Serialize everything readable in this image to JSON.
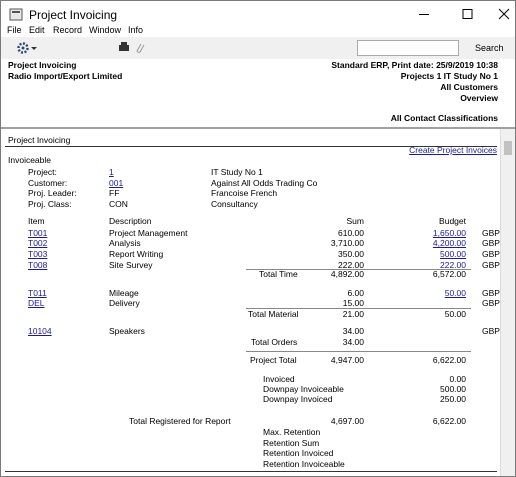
{
  "window": {
    "title": "Project Invoicing",
    "menu": [
      "File",
      "Edit",
      "Record",
      "Window",
      "Info"
    ],
    "search_button": "Search"
  },
  "header": {
    "left": [
      "Project Invoicing",
      "Radio Import/Export Limited"
    ],
    "right": [
      "Standard ERP, Print date: 25/9/2019 10:38",
      "Projects 1 IT Study No 1",
      "All Customers",
      "Overview",
      "All Contact Classifications"
    ]
  },
  "report": {
    "title": "Project Invoicing",
    "action": "Create Project Invoices",
    "section": "Invoiceable",
    "info": [
      {
        "label": "Project:",
        "code": "1",
        "name": "IT Study No 1"
      },
      {
        "label": "Customer:",
        "code": "001",
        "name": "Against All Odds Trading Co"
      },
      {
        "label": "Proj. Leader:",
        "code": "FF",
        "name": "Francoise French"
      },
      {
        "label": "Proj. Class:",
        "code": "CON",
        "name": "Consultancy"
      }
    ],
    "columns": [
      "Item",
      "Description",
      "Sum",
      "Budget"
    ],
    "groups": [
      {
        "rows": [
          {
            "item": "T001",
            "description": "Project Management",
            "sum": "610.00",
            "budget": "1,650.00",
            "currency": "GBP"
          },
          {
            "item": "T002",
            "description": "Analysis",
            "sum": "3,710.00",
            "budget": "4,200.00",
            "currency": "GBP"
          },
          {
            "item": "T003",
            "description": "Report Writing",
            "sum": "350.00",
            "budget": "500.00",
            "currency": "GBP"
          },
          {
            "item": "T008",
            "description": "Site Survey",
            "sum": "222.00",
            "budget": "222.00",
            "currency": "GBP"
          }
        ],
        "total": {
          "label": "Total Time",
          "sum": "4,892.00",
          "budget": "6,572.00"
        }
      },
      {
        "rows": [
          {
            "item": "T011",
            "description": "Mileage",
            "sum": "6.00",
            "budget": "50.00",
            "currency": "GBP"
          },
          {
            "item": "DEL",
            "description": "Delivery",
            "sum": "15.00",
            "currency": "GBP"
          }
        ],
        "total": {
          "label": "Total Material",
          "sum": "21.00",
          "budget": "50.00"
        }
      },
      {
        "rows": [
          {
            "item": "10104",
            "description": "Speakers",
            "sum": "34.00",
            "currency": "GBP"
          }
        ],
        "total": {
          "label": "Total Orders",
          "sum": "34.00"
        }
      }
    ],
    "project_total": {
      "label": "Project Total",
      "sum": "4,947.00",
      "budget": "6,622.00"
    },
    "invoiced": [
      {
        "label": "Invoiced",
        "value": "0.00"
      },
      {
        "label": "Downpay Invoiceable",
        "value": "500.00"
      },
      {
        "label": "Downpay Invoiced",
        "value": "250.00"
      }
    ],
    "registered": {
      "label": "Total Registered for Report",
      "sum": "4,697.00",
      "budget": "6,622.00"
    },
    "retention": [
      "Max. Retention",
      "Retention Sum",
      "Retention Invoiced",
      "Retention Invoiceable"
    ]
  }
}
